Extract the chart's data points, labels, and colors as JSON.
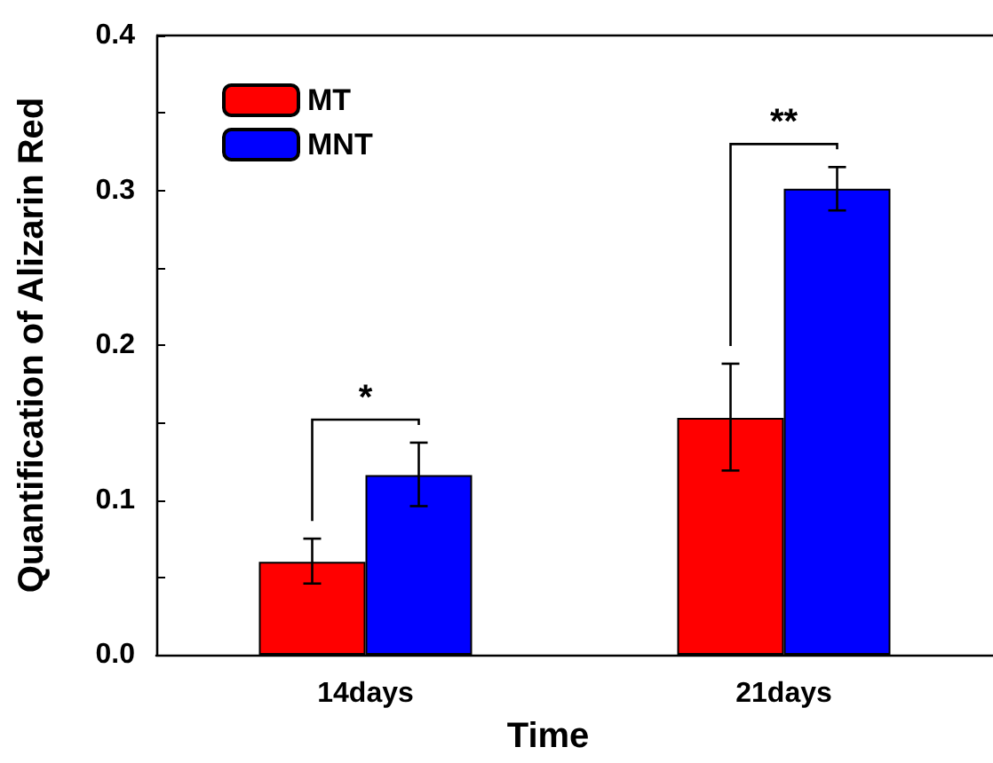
{
  "chart_data": {
    "type": "bar",
    "xlabel": "Time",
    "ylabel": "Quantification of Alizarin Red",
    "categories": [
      "14days",
      "21days"
    ],
    "series": [
      {
        "name": "MT",
        "color": "#ff0000",
        "values": [
          0.06,
          0.153
        ],
        "errors": [
          [
            0.046,
            0.075
          ],
          [
            0.119,
            0.188
          ]
        ]
      },
      {
        "name": "MNT",
        "color": "#0000ff",
        "values": [
          0.116,
          0.301
        ],
        "errors": [
          [
            0.096,
            0.137
          ],
          [
            0.287,
            0.315
          ]
        ]
      }
    ],
    "ylim": [
      0,
      0.4
    ],
    "yticks": [
      {
        "value": 0,
        "label": "0.0"
      },
      {
        "value": 0.05,
        "label": null
      },
      {
        "value": 0.1,
        "label": "0.1"
      },
      {
        "value": 0.15,
        "label": null
      },
      {
        "value": 0.2,
        "label": "0.2"
      },
      {
        "value": 0.25,
        "label": null
      },
      {
        "value": 0.3,
        "label": "0.3"
      },
      {
        "value": 0.35,
        "label": null
      },
      {
        "value": 0.4,
        "label": "0.4"
      }
    ],
    "annotations": [
      "*",
      "**"
    ],
    "legend": "top left",
    "grid": false
  }
}
